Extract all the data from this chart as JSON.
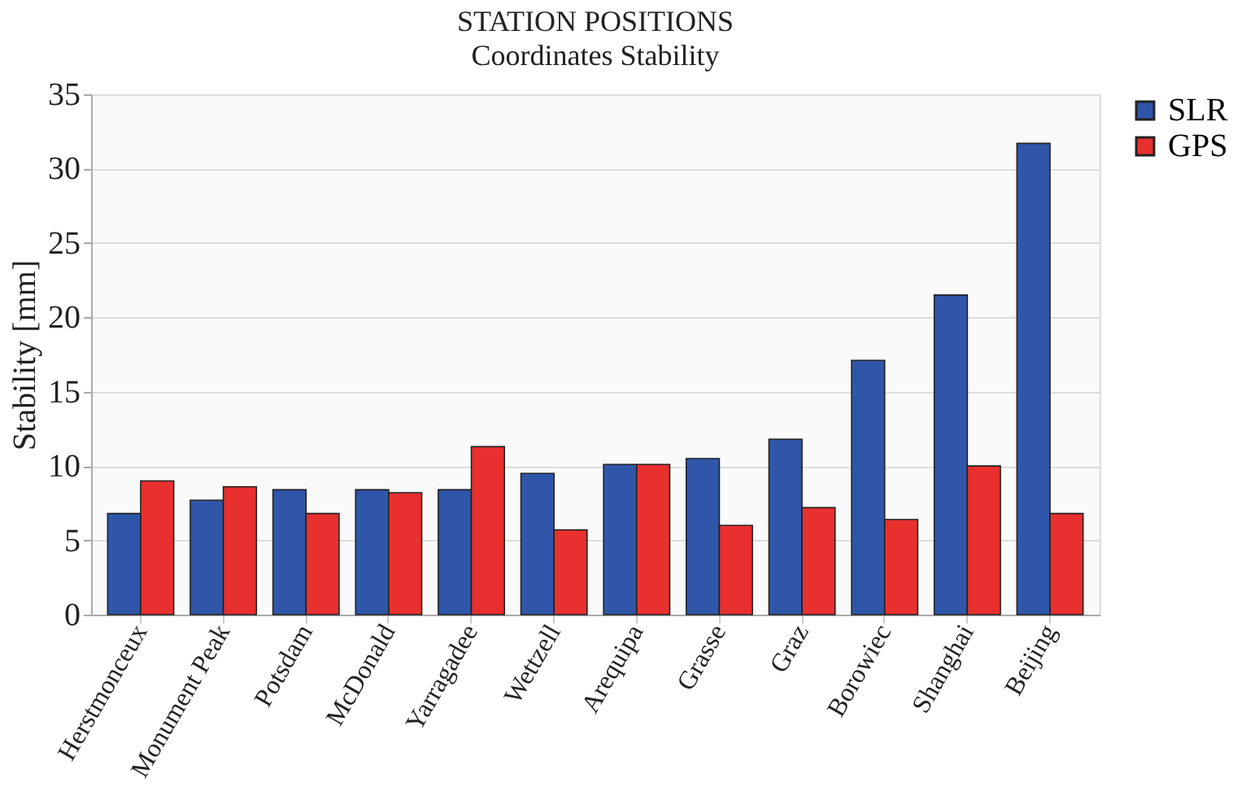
{
  "chart_data": {
    "type": "bar",
    "title": "STATION POSITIONS",
    "subtitle": "Coordinates Stability",
    "ylabel": "Stability [mm]",
    "categories": [
      "Herstmonceux",
      "Monument Peak",
      "Potsdam",
      "McDonald",
      "Yarragadee",
      "Wettzell",
      "Arequipa",
      "Grasse",
      "Graz",
      "Borowiec",
      "Shanghai",
      "Beijing"
    ],
    "series": [
      {
        "name": "SLR",
        "color": "#2f56a8",
        "values": [
          6.8,
          7.7,
          8.4,
          8.4,
          8.4,
          9.5,
          10.1,
          10.5,
          11.8,
          17.1,
          21.5,
          31.7
        ]
      },
      {
        "name": "GPS",
        "color": "#e8302f",
        "values": [
          9.0,
          8.6,
          6.8,
          8.2,
          11.3,
          5.7,
          10.1,
          6.0,
          7.2,
          6.4,
          10.0,
          6.8
        ]
      }
    ],
    "ylim": [
      0,
      35
    ],
    "yticks": [
      0,
      5,
      10,
      15,
      20,
      25,
      30,
      35
    ],
    "grid": "y",
    "legend": "top right"
  }
}
